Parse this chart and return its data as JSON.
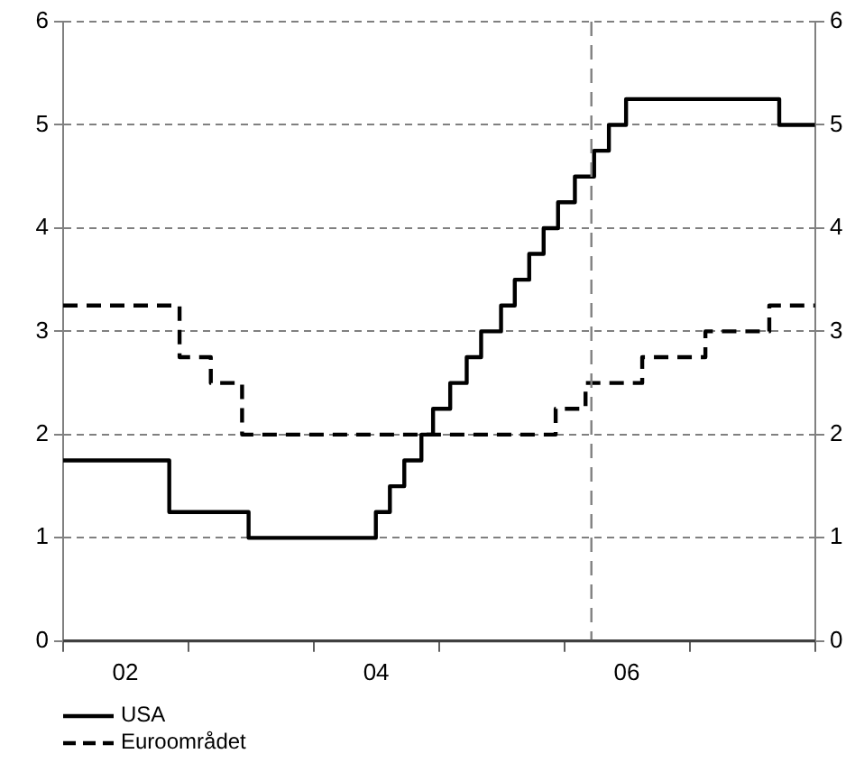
{
  "chart_data": {
    "type": "step",
    "xlim": [
      "2002-01-01",
      "2008-01-01"
    ],
    "xticks": [
      {
        "value": "2002",
        "label": null
      },
      {
        "value": "2002-07-01",
        "label": "02"
      },
      {
        "value": "2003",
        "label": null
      },
      {
        "value": "2004",
        "label": null
      },
      {
        "value": "2004-07-01",
        "label": "04"
      },
      {
        "value": "2005",
        "label": null
      },
      {
        "value": "2006",
        "label": null
      },
      {
        "value": "2006-07-01",
        "label": "06"
      },
      {
        "value": "2007",
        "label": null
      },
      {
        "value": "2008",
        "label": null
      }
    ],
    "ylim": [
      0,
      6
    ],
    "yticks": [
      0,
      1,
      2,
      3,
      4,
      5,
      6
    ],
    "y2lim": [
      0,
      6
    ],
    "y2ticks": [
      0,
      1,
      2,
      3,
      4,
      5,
      6
    ],
    "grid": "y",
    "legend": "bottom left",
    "marker": "none",
    "ref_lines": [
      {
        "axis": "x",
        "value": "2006-03-20",
        "label": null,
        "color": "#808080",
        "line_style": "dashed"
      }
    ],
    "series": [
      {
        "name": "USA",
        "color": "#000000",
        "line_style": "solid",
        "x": [
          "2002-01-01",
          "2002-11-06",
          "2003-06-25",
          "2004-06-30",
          "2004-08-10",
          "2004-09-21",
          "2004-11-10",
          "2004-12-14",
          "2005-02-02",
          "2005-03-22",
          "2005-05-03",
          "2005-06-30",
          "2005-08-09",
          "2005-09-20",
          "2005-11-01",
          "2005-12-13",
          "2006-01-31",
          "2006-03-28",
          "2006-05-10",
          "2006-06-29",
          "2007-09-18",
          "2007-12-31"
        ],
        "values": [
          1.75,
          1.25,
          1,
          1.25,
          1.5,
          1.75,
          2,
          2.25,
          2.5,
          2.75,
          3,
          3.25,
          3.5,
          3.75,
          4,
          4.25,
          4.5,
          4.75,
          5,
          5.25,
          5,
          5
        ]
      },
      {
        "name": "Euroområdet",
        "color": "#000000",
        "line_style": "dashed",
        "x": [
          "2002-01-01",
          "2002-12-06",
          "2003-03-07",
          "2003-06-06",
          "2005-12-06",
          "2006-03-03",
          "2006-08-15",
          "2007-02-15",
          "2007-08-20",
          "2007-12-31"
        ],
        "values": [
          3.25,
          2.75,
          2.5,
          2,
          2.25,
          2.5,
          2.75,
          3,
          3.25,
          3.25
        ]
      }
    ]
  }
}
